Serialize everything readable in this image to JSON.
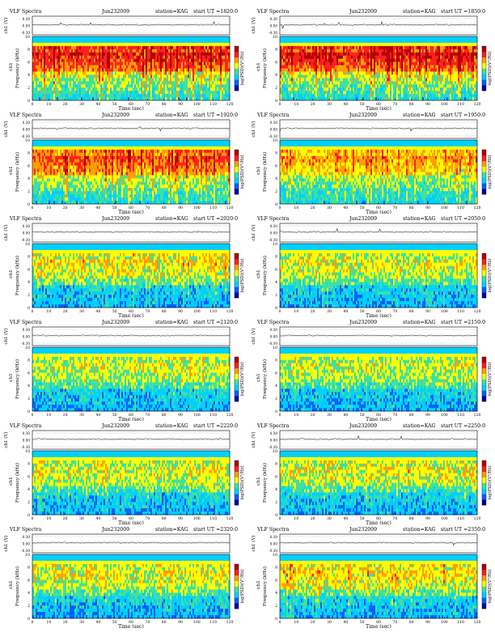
{
  "figure": {
    "header_left": "VLF Spectra",
    "station_label": "station=KAG",
    "ch_label": "ch1 (V)",
    "freq_label": "Frequency (kHz)",
    "freq_ch_label": "ch1",
    "time_label": "Time (sec)",
    "colorbar_label": "log(PSD)(V²/Hz)"
  },
  "chart_data": {
    "type": "heatmap",
    "x": {
      "label": "Time (sec)",
      "range": [
        0,
        120
      ],
      "ticks": [
        "0",
        "10",
        "20",
        "30",
        "40",
        "50",
        "60",
        "70",
        "80",
        "90",
        "100",
        "110",
        "120"
      ]
    },
    "y": {
      "label": "Frequency (kHz)",
      "range": [
        0,
        10
      ],
      "ticks": [
        "0",
        "2",
        "4",
        "6",
        "8",
        "10"
      ]
    },
    "waveform_axis": {
      "label": "ch1 (V)",
      "ticks": [
        "0.30",
        "0.00",
        "-0.30"
      ]
    },
    "colorbar": {
      "label": "log(PSD)(V²/Hz)",
      "colors": [
        "#0000a0",
        "#0060ff",
        "#00d0ff",
        "#40e0a0",
        "#ffff00",
        "#ffa000",
        "#ff2020",
        "#b00000"
      ]
    },
    "panels": [
      {
        "date": "Jun232009",
        "start": "start  UT  =1820:0",
        "activity": 0.92
      },
      {
        "date": "Jun232009",
        "start": "start  UT  =1850:0",
        "activity": 0.94
      },
      {
        "date": "Jun232009",
        "start": "start  UT  =1920:0",
        "activity": 0.78
      },
      {
        "date": "Jun232009",
        "start": "start  UT  =1950:0",
        "activity": 0.62
      },
      {
        "date": "Jun232009",
        "start": "start  UT  =2020:0",
        "activity": 0.45
      },
      {
        "date": "Jun232009",
        "start": "start  UT  =2050:0",
        "activity": 0.4
      },
      {
        "date": "Jun232009",
        "start": "start  UT  =2120:0",
        "activity": 0.38
      },
      {
        "date": "Jun232009",
        "start": "start  UT  =2150:0",
        "activity": 0.36
      },
      {
        "date": "Jun232009",
        "start": "start  UT  =2220:0",
        "activity": 0.4
      },
      {
        "date": "Jun232009",
        "start": "start  UT  =2250:0",
        "activity": 0.42
      },
      {
        "date": "Jun232009",
        "start": "start  UT  =2320:0",
        "activity": 0.42
      },
      {
        "date": "Jun232009",
        "start": "start  UT  =2350:0",
        "activity": 0.48
      }
    ]
  }
}
